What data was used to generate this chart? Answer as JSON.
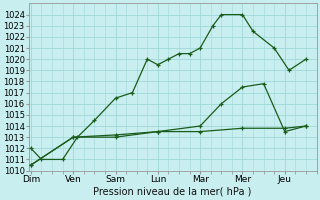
{
  "xlabel": "Pression niveau de la mer( hPa )",
  "background_color": "#c8eef0",
  "grid_color": "#a0d8d8",
  "line_color": "#1a5c1a",
  "xtick_labels": [
    "Dim",
    "Ven",
    "Sam",
    "Lun",
    "Mar",
    "Mer",
    "Jeu"
  ],
  "x_major": [
    0,
    1,
    2,
    3,
    4,
    5,
    6
  ],
  "ylim": [
    1010,
    1025
  ],
  "yticks": [
    1010,
    1011,
    1012,
    1013,
    1014,
    1015,
    1016,
    1017,
    1018,
    1019,
    1020,
    1021,
    1022,
    1023,
    1024
  ],
  "xlim": [
    -0.05,
    6.6
  ],
  "line1_x": [
    0.0,
    0.25,
    0.75,
    1.1,
    1.5,
    2.0,
    2.4,
    2.75,
    3.0,
    3.25,
    3.5,
    3.75,
    4.0,
    4.3,
    4.5,
    5.0,
    5.25,
    5.75,
    6.1,
    6.5
  ],
  "line1_y": [
    1012.0,
    1011.0,
    1011.0,
    1013.0,
    1014.5,
    1016.5,
    1017.0,
    1020.0,
    1019.5,
    1020.0,
    1020.5,
    1020.5,
    1021.0,
    1023.0,
    1024.0,
    1024.0,
    1022.5,
    1021.0,
    1019.0,
    1020.0
  ],
  "line2_x": [
    0.0,
    1.0,
    2.0,
    3.0,
    4.0,
    4.5,
    5.0,
    5.5,
    6.0,
    6.5
  ],
  "line2_y": [
    1010.5,
    1013.0,
    1013.0,
    1013.5,
    1014.0,
    1016.0,
    1017.5,
    1017.8,
    1013.5,
    1014.0
  ],
  "line3_x": [
    0.0,
    1.0,
    2.0,
    3.0,
    4.0,
    5.0,
    6.0,
    6.5
  ],
  "line3_y": [
    1010.5,
    1013.0,
    1013.2,
    1013.5,
    1013.5,
    1013.8,
    1013.8,
    1014.0
  ],
  "marker": "+",
  "markersize": 3.5,
  "linewidth": 0.9
}
